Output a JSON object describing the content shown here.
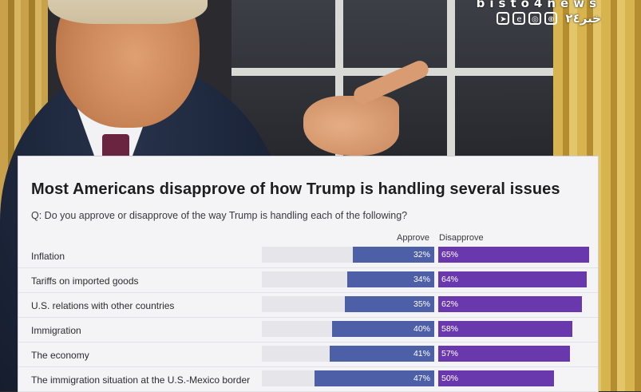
{
  "watermark": {
    "site": "bisto4news",
    "icons": [
      "telegram-icon",
      "e-icon",
      "instagram-icon",
      "globe-icon"
    ],
    "arabic": "خبر۲٤"
  },
  "chart_data": {
    "type": "bar",
    "title": "Most Americans disapprove of how Trump is handling several issues",
    "subtitle": "Q: Do you approve or disapprove of the way Trump is handling each of the following?",
    "categories": [
      "Inflation",
      "Tariffs on imported goods",
      "U.S. relations with other countries",
      "Immigration",
      "The economy",
      "The immigration situation at the U.S.-Mexico border"
    ],
    "series": [
      {
        "name": "Approve",
        "values": [
          32,
          34,
          35,
          40,
          41,
          47
        ],
        "labels": [
          "32%",
          "34%",
          "35%",
          "40%",
          "41%",
          "47%"
        ],
        "color": "#4d5fa6"
      },
      {
        "name": "Disapprove",
        "values": [
          65,
          64,
          62,
          58,
          57,
          50
        ],
        "labels": [
          "65%",
          "64%",
          "62%",
          "58%",
          "57%",
          "50%"
        ],
        "color": "#6a38ad"
      }
    ],
    "orientation": "horizontal-diverging",
    "grid": false,
    "legend": "top-column-headers"
  }
}
